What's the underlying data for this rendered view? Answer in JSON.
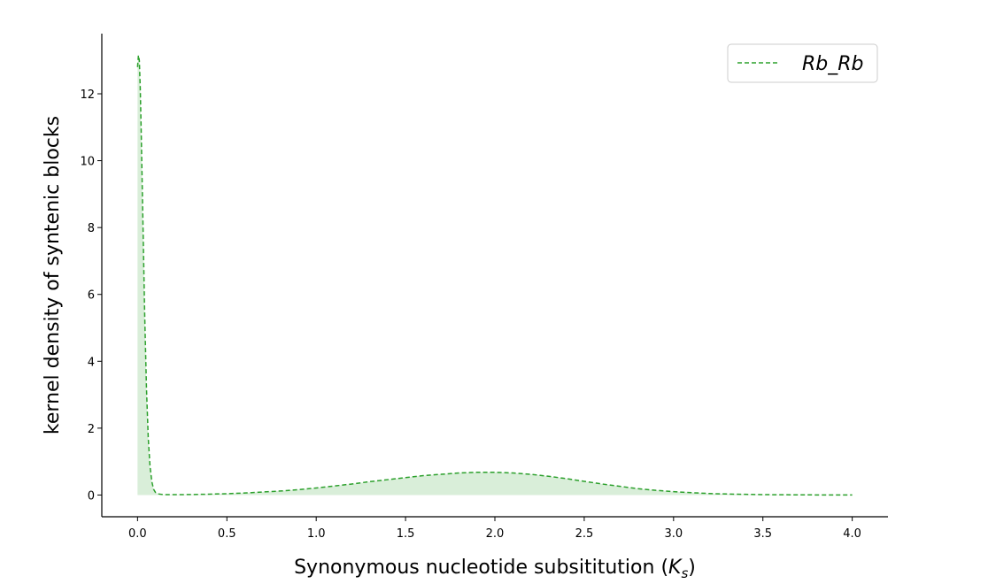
{
  "chart_data": {
    "type": "area",
    "xlabel": "Synonymous nucleotide subsititution (",
    "xlabel_symbol": "K",
    "xlabel_subscript": "s",
    "xlabel_suffix": ")",
    "ylabel": "kernel density of syntenic blocks",
    "xlim": [
      -0.2,
      4.2
    ],
    "ylim": [
      -0.65,
      13.8
    ],
    "xticks": [
      0.0,
      0.5,
      1.0,
      1.5,
      2.0,
      2.5,
      3.0,
      3.5,
      4.0
    ],
    "xtick_labels": [
      "0.0",
      "0.5",
      "1.0",
      "1.5",
      "2.0",
      "2.5",
      "3.0",
      "3.5",
      "4.0"
    ],
    "yticks": [
      0,
      2,
      4,
      6,
      8,
      10,
      12
    ],
    "ytick_labels": [
      "0",
      "2",
      "4",
      "6",
      "8",
      "10",
      "12"
    ],
    "grid": false,
    "legend_position": "top-right",
    "series": [
      {
        "name": "Rb_Rb",
        "color": "#2ca02c",
        "fill_color": "#2ca02c",
        "fill_opacity": 0.18,
        "line_style": "dashed",
        "x": [
          0.0,
          0.005,
          0.01,
          0.015,
          0.02,
          0.03,
          0.04,
          0.05,
          0.06,
          0.07,
          0.08,
          0.09,
          0.1,
          0.12,
          0.15,
          0.2,
          0.3,
          0.4,
          0.5,
          0.6,
          0.7,
          0.8,
          0.9,
          1.0,
          1.1,
          1.2,
          1.3,
          1.4,
          1.5,
          1.6,
          1.7,
          1.8,
          1.9,
          2.0,
          2.1,
          2.2,
          2.3,
          2.4,
          2.5,
          2.6,
          2.7,
          2.8,
          2.9,
          3.0,
          3.1,
          3.2,
          3.3,
          3.4,
          3.5,
          3.6,
          3.7,
          3.8,
          3.9,
          4.0
        ],
        "y": [
          12.8,
          13.15,
          13.0,
          12.2,
          11.0,
          8.2,
          5.4,
          3.2,
          1.7,
          0.85,
          0.4,
          0.17,
          0.08,
          0.03,
          0.01,
          0.01,
          0.015,
          0.025,
          0.04,
          0.06,
          0.09,
          0.12,
          0.16,
          0.21,
          0.27,
          0.33,
          0.4,
          0.46,
          0.52,
          0.58,
          0.62,
          0.66,
          0.68,
          0.68,
          0.66,
          0.62,
          0.56,
          0.49,
          0.41,
          0.33,
          0.26,
          0.19,
          0.14,
          0.1,
          0.07,
          0.045,
          0.03,
          0.02,
          0.012,
          0.008,
          0.005,
          0.003,
          0.002,
          0.001
        ]
      }
    ]
  }
}
